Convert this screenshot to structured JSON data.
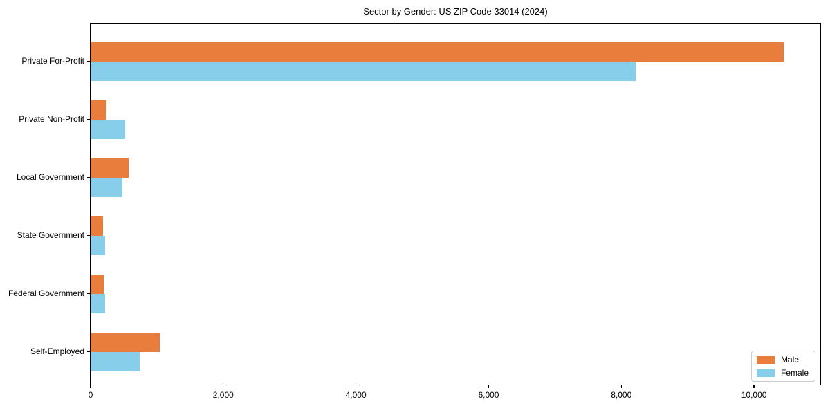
{
  "title": "Sector by Gender: US ZIP Code 33014 (2024)",
  "chart_data": {
    "type": "bar",
    "orientation": "horizontal",
    "title": "Sector by Gender: US ZIP Code 33014 (2024)",
    "categories": [
      "Private For-Profit",
      "Private Non-Profit",
      "Local Government",
      "State Government",
      "Federal Government",
      "Self-Employed"
    ],
    "series": [
      {
        "name": "Male",
        "color": "#e87d3c",
        "values": [
          10450,
          230,
          570,
          185,
          200,
          1040
        ]
      },
      {
        "name": "Female",
        "color": "#87ceeb",
        "values": [
          8220,
          520,
          480,
          215,
          220,
          740
        ]
      }
    ],
    "xlabel": "",
    "ylabel": "",
    "xlim": [
      0,
      11000
    ],
    "xticks": [
      {
        "value": 0,
        "label": "0"
      },
      {
        "value": 2000,
        "label": "2,000"
      },
      {
        "value": 4000,
        "label": "4,000"
      },
      {
        "value": 6000,
        "label": "6,000"
      },
      {
        "value": 8000,
        "label": "8,000"
      },
      {
        "value": 10000,
        "label": "10,000"
      }
    ],
    "grid": false,
    "legend": {
      "position": "lower-right",
      "entries": [
        "Male",
        "Female"
      ]
    },
    "plot_background": "#ffffff",
    "spine_color": "#000000"
  }
}
